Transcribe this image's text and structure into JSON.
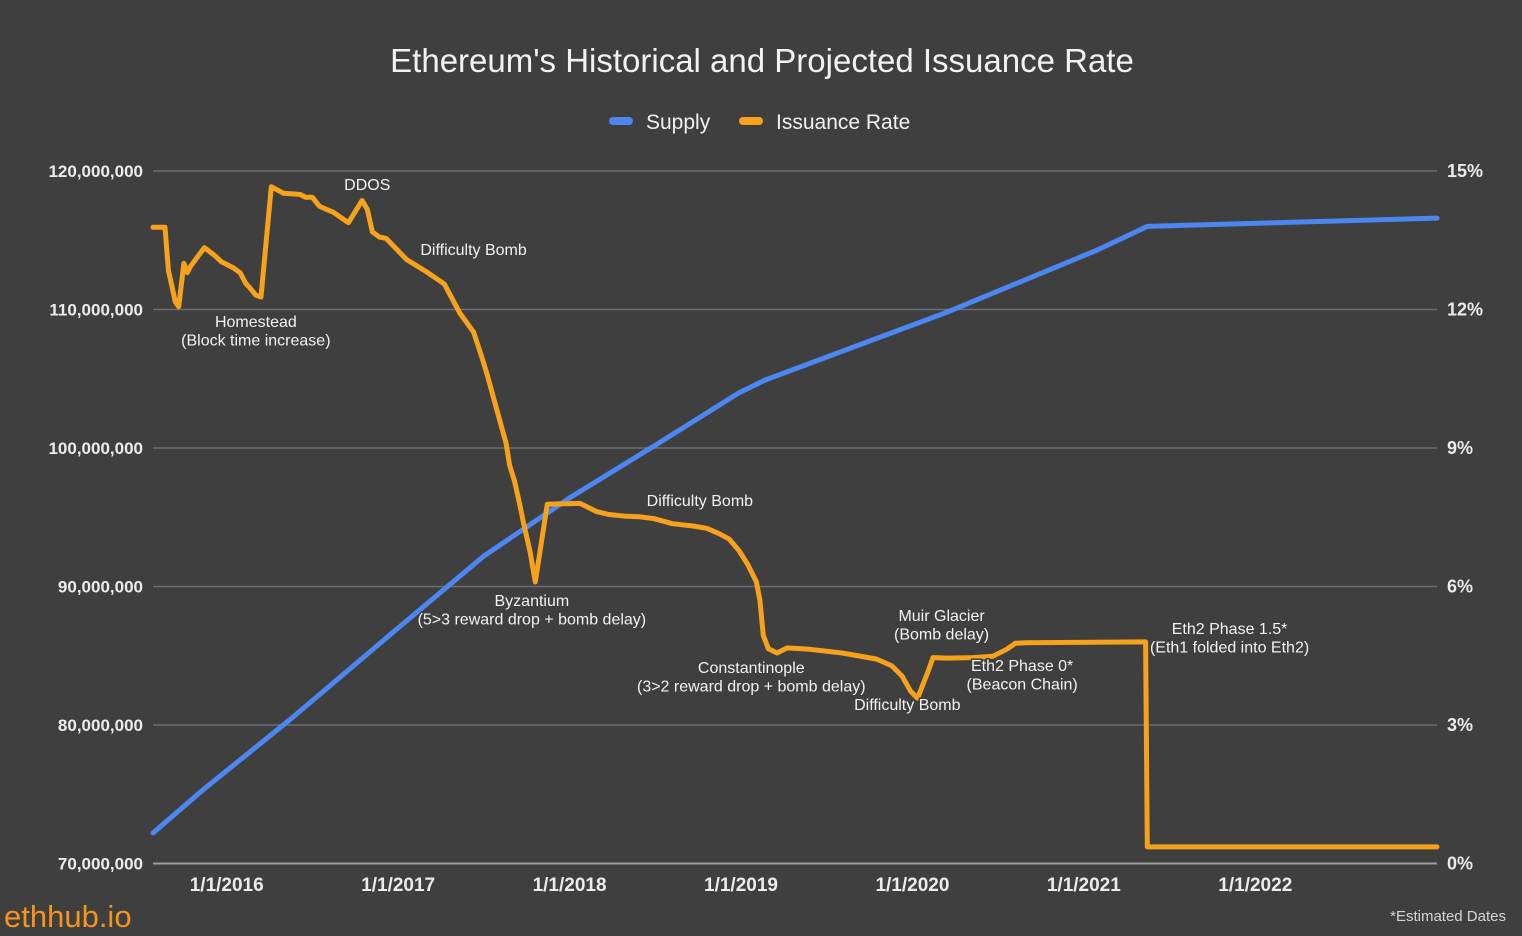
{
  "title": "Ethereum's Historical and Projected Issuance Rate",
  "footer": {
    "watermark": "ethhub.io",
    "note": "*Estimated Dates"
  },
  "colors": {
    "background": "#3F3F3F",
    "gridline": "#6E6E6E",
    "baseline": "#9E9E9E",
    "supply_blue": "#4C86F0",
    "issuance_orange": "#F6A21C",
    "text": "#F2F2F2"
  },
  "chart_data": {
    "type": "line",
    "title": "Ethereum's Historical and Projected Issuance Rate",
    "legend_position": "top",
    "grid": true,
    "x_axis": {
      "kind": "time-years",
      "range": [
        2015.57,
        2023.06
      ],
      "ticks": [
        {
          "year": 2016,
          "label": "1/1/2016"
        },
        {
          "year": 2017,
          "label": "1/1/2017"
        },
        {
          "year": 2018,
          "label": "1/1/2018"
        },
        {
          "year": 2019,
          "label": "1/1/2019"
        },
        {
          "year": 2020,
          "label": "1/1/2020"
        },
        {
          "year": 2021,
          "label": "1/1/2021"
        },
        {
          "year": 2022,
          "label": "1/1/2022"
        }
      ]
    },
    "y_axis_left": {
      "range": [
        70000000,
        120000000
      ],
      "ticks": [
        {
          "value": 70000000,
          "label": "70,000,000"
        },
        {
          "value": 80000000,
          "label": "80,000,000"
        },
        {
          "value": 90000000,
          "label": "90,000,000"
        },
        {
          "value": 100000000,
          "label": "100,000,000"
        },
        {
          "value": 110000000,
          "label": "110,000,000"
        },
        {
          "value": 120000000,
          "label": "120,000,000"
        }
      ]
    },
    "y_axis_right": {
      "range": [
        0,
        15
      ],
      "ticks": [
        {
          "value": 0,
          "label": "0%"
        },
        {
          "value": 3,
          "label": "3%"
        },
        {
          "value": 6,
          "label": "6%"
        },
        {
          "value": 9,
          "label": "9%"
        },
        {
          "value": 12,
          "label": "12%"
        },
        {
          "value": 15,
          "label": "15%"
        }
      ]
    },
    "series": [
      {
        "name": "Supply",
        "axis": "left",
        "color": "#4C86F0",
        "points": [
          [
            2015.57,
            72200000
          ],
          [
            2015.86,
            75300000
          ],
          [
            2016.37,
            80400000
          ],
          [
            2017.0,
            87000000
          ],
          [
            2017.5,
            92200000
          ],
          [
            2018.0,
            96400000
          ],
          [
            2018.5,
            100200000
          ],
          [
            2018.99,
            104000000
          ],
          [
            2019.14,
            104900000
          ],
          [
            2020.2,
            109800000
          ],
          [
            2021.08,
            114300000
          ],
          [
            2021.37,
            116000000
          ],
          [
            2023.06,
            116600000
          ]
        ]
      },
      {
        "name": "Issuance Rate",
        "axis": "right",
        "color": "#F6A21C",
        "points": [
          [
            2015.57,
            13.78
          ],
          [
            2015.64,
            13.78
          ],
          [
            2015.66,
            12.85
          ],
          [
            2015.7,
            12.17
          ],
          [
            2015.72,
            12.06
          ],
          [
            2015.75,
            13.0
          ],
          [
            2015.77,
            12.8
          ],
          [
            2015.79,
            12.94
          ],
          [
            2015.87,
            13.34
          ],
          [
            2015.93,
            13.17
          ],
          [
            2015.97,
            13.03
          ],
          [
            2016.04,
            12.9
          ],
          [
            2016.08,
            12.79
          ],
          [
            2016.11,
            12.57
          ],
          [
            2016.13,
            12.49
          ],
          [
            2016.17,
            12.31
          ],
          [
            2016.2,
            12.27
          ],
          [
            2016.26,
            14.66
          ],
          [
            2016.33,
            14.52
          ],
          [
            2016.43,
            14.49
          ],
          [
            2016.46,
            14.43
          ],
          [
            2016.5,
            14.43
          ],
          [
            2016.54,
            14.24
          ],
          [
            2016.58,
            14.17
          ],
          [
            2016.62,
            14.11
          ],
          [
            2016.71,
            13.88
          ],
          [
            2016.79,
            14.36
          ],
          [
            2016.82,
            14.17
          ],
          [
            2016.85,
            13.68
          ],
          [
            2016.89,
            13.57
          ],
          [
            2016.93,
            13.54
          ],
          [
            2017.05,
            13.08
          ],
          [
            2017.16,
            12.83
          ],
          [
            2017.27,
            12.55
          ],
          [
            2017.36,
            11.92
          ],
          [
            2017.44,
            11.51
          ],
          [
            2017.49,
            10.95
          ],
          [
            2017.52,
            10.58
          ],
          [
            2017.6,
            9.5
          ],
          [
            2017.63,
            9.1
          ],
          [
            2017.65,
            8.63
          ],
          [
            2017.68,
            8.27
          ],
          [
            2017.71,
            7.76
          ],
          [
            2017.73,
            7.4
          ],
          [
            2017.77,
            6.75
          ],
          [
            2017.8,
            6.1
          ],
          [
            2017.87,
            7.78
          ],
          [
            2017.94,
            7.79
          ],
          [
            2018.06,
            7.8
          ],
          [
            2018.16,
            7.62
          ],
          [
            2018.23,
            7.56
          ],
          [
            2018.33,
            7.52
          ],
          [
            2018.41,
            7.51
          ],
          [
            2018.49,
            7.47
          ],
          [
            2018.6,
            7.36
          ],
          [
            2018.72,
            7.31
          ],
          [
            2018.8,
            7.26
          ],
          [
            2018.87,
            7.15
          ],
          [
            2018.93,
            7.03
          ],
          [
            2018.99,
            6.77
          ],
          [
            2019.04,
            6.47
          ],
          [
            2019.09,
            6.1
          ],
          [
            2019.11,
            5.7
          ],
          [
            2019.13,
            4.94
          ],
          [
            2019.16,
            4.65
          ],
          [
            2019.21,
            4.56
          ],
          [
            2019.27,
            4.67
          ],
          [
            2019.4,
            4.64
          ],
          [
            2019.59,
            4.56
          ],
          [
            2019.79,
            4.43
          ],
          [
            2019.88,
            4.28
          ],
          [
            2019.94,
            4.06
          ],
          [
            2019.99,
            3.73
          ],
          [
            2020.03,
            3.58
          ],
          [
            2020.09,
            4.15
          ],
          [
            2020.12,
            4.46
          ],
          [
            2020.2,
            4.45
          ],
          [
            2020.35,
            4.46
          ],
          [
            2020.47,
            4.49
          ],
          [
            2020.55,
            4.64
          ],
          [
            2020.6,
            4.77
          ],
          [
            2020.66,
            4.78
          ],
          [
            2021.36,
            4.8
          ],
          [
            2021.37,
            0.36
          ],
          [
            2023.06,
            0.36
          ]
        ]
      }
    ],
    "annotations": [
      {
        "lines": [
          "DDOS"
        ],
        "year": 2016.82,
        "pct": 14.7
      },
      {
        "lines": [
          "Difficulty Bomb"
        ],
        "year": 2017.44,
        "pct": 13.29
      },
      {
        "lines": [
          "Homestead",
          "(Block time increase)"
        ],
        "year": 2016.17,
        "pct": 11.73
      },
      {
        "lines": [
          "Byzantium",
          "(5>3 reward drop + bomb delay)"
        ],
        "year": 2017.78,
        "pct": 5.69
      },
      {
        "lines": [
          "Difficulty Bomb"
        ],
        "year": 2018.76,
        "pct": 7.85
      },
      {
        "lines": [
          "Constantinople",
          "(3>2 reward drop + bomb delay)"
        ],
        "year": 2019.06,
        "pct": 4.23
      },
      {
        "lines": [
          "Muir Glacier",
          "(Bomb delay)"
        ],
        "year": 2020.17,
        "pct": 5.36
      },
      {
        "lines": [
          "Difficulty Bomb"
        ],
        "year": 2019.97,
        "pct": 3.43
      },
      {
        "lines": [
          "Eth2 Phase 0*",
          "(Beacon Chain)"
        ],
        "year": 2020.64,
        "pct": 4.28
      },
      {
        "lines": [
          "Eth2 Phase 1.5*",
          "(Eth1 folded into Eth2)"
        ],
        "year": 2021.85,
        "pct": 5.08
      }
    ]
  }
}
